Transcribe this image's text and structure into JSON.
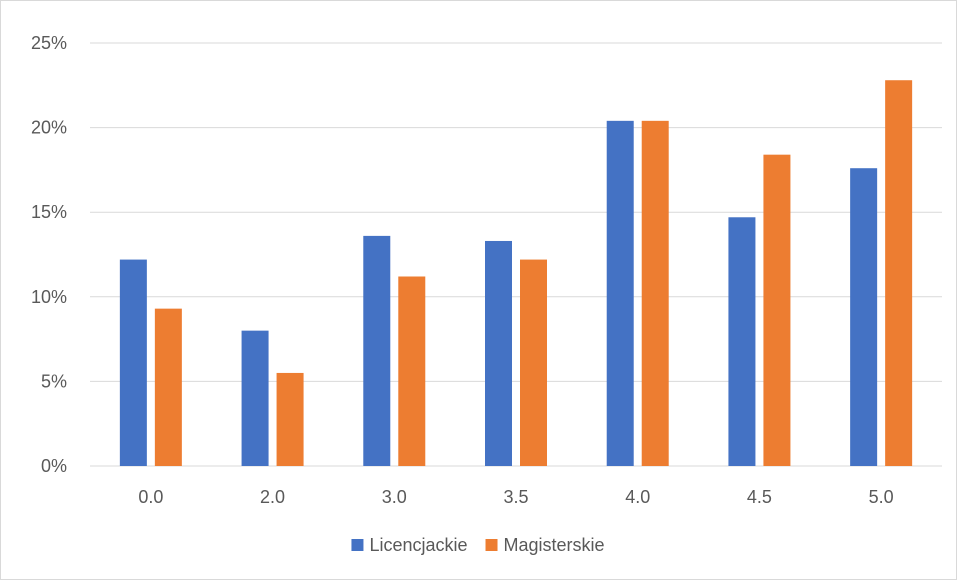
{
  "chart_data": {
    "type": "bar",
    "title": "",
    "xlabel": "",
    "ylabel": "",
    "categories": [
      "0.0",
      "2.0",
      "3.0",
      "3.5",
      "4.0",
      "4.5",
      "5.0"
    ],
    "series": [
      {
        "name": "Licencjackie",
        "color": "#4472C4",
        "values": [
          12.2,
          8.0,
          13.6,
          13.3,
          20.4,
          14.7,
          17.6
        ]
      },
      {
        "name": "Magisterskie",
        "color": "#ED7D31",
        "values": [
          9.3,
          5.5,
          11.2,
          12.2,
          20.4,
          18.4,
          22.8
        ]
      }
    ],
    "ylim": [
      0,
      25
    ],
    "yticks": [
      0,
      5,
      10,
      15,
      20,
      25
    ],
    "ytick_labels": [
      "0%",
      "5%",
      "10%",
      "15%",
      "20%",
      "25%"
    ],
    "grid": true,
    "legend_position": "bottom",
    "colors": {
      "gridline": "#d9d9d9",
      "axis": "#d9d9d9",
      "text": "#595959"
    }
  }
}
